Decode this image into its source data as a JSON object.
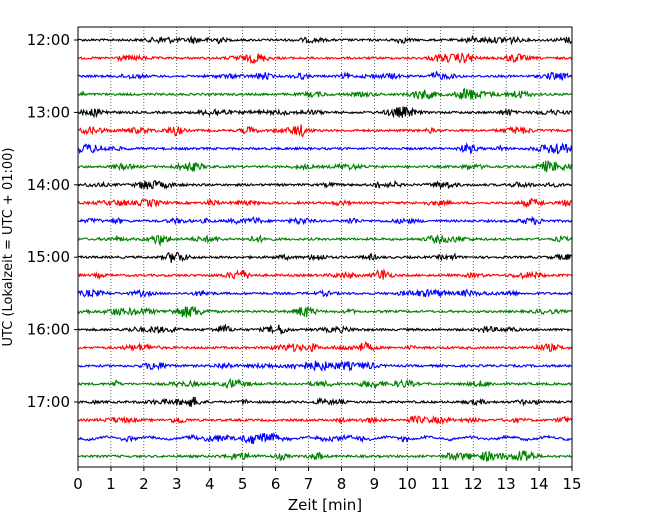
{
  "chart_data": {
    "type": "line",
    "title": "",
    "xlabel": "Zeit  [min]",
    "ylabel": "UTC (Lokalzeit = UTC + 01:00)",
    "xlim": [
      0,
      15
    ],
    "x_ticks": [
      "0",
      "1",
      "2",
      "3",
      "4",
      "5",
      "6",
      "7",
      "8",
      "9",
      "10",
      "11",
      "12",
      "13",
      "14",
      "15"
    ],
    "y_ticks": [
      "12:00",
      "13:00",
      "14:00",
      "15:00",
      "16:00",
      "17:00"
    ],
    "grid": "vertical dotted",
    "trace_interval_minutes": 15,
    "trace_colors": [
      "#000000",
      "#ff0000",
      "#0000ff",
      "#008000"
    ],
    "traces": [
      {
        "start": "12:00",
        "color": "#000000"
      },
      {
        "start": "12:15",
        "color": "#ff0000"
      },
      {
        "start": "12:30",
        "color": "#0000ff"
      },
      {
        "start": "12:45",
        "color": "#008000"
      },
      {
        "start": "13:00",
        "color": "#000000"
      },
      {
        "start": "13:15",
        "color": "#ff0000"
      },
      {
        "start": "13:30",
        "color": "#0000ff"
      },
      {
        "start": "13:45",
        "color": "#008000"
      },
      {
        "start": "14:00",
        "color": "#000000"
      },
      {
        "start": "14:15",
        "color": "#ff0000"
      },
      {
        "start": "14:30",
        "color": "#0000ff"
      },
      {
        "start": "14:45",
        "color": "#008000"
      },
      {
        "start": "15:00",
        "color": "#000000"
      },
      {
        "start": "15:15",
        "color": "#ff0000"
      },
      {
        "start": "15:30",
        "color": "#0000ff"
      },
      {
        "start": "15:45",
        "color": "#008000"
      },
      {
        "start": "16:00",
        "color": "#000000"
      },
      {
        "start": "16:15",
        "color": "#ff0000"
      },
      {
        "start": "16:30",
        "color": "#0000ff"
      },
      {
        "start": "16:45",
        "color": "#008000"
      },
      {
        "start": "17:00",
        "color": "#000000"
      },
      {
        "start": "17:15",
        "color": "#ff0000"
      },
      {
        "start": "17:30",
        "color": "#0000ff"
      },
      {
        "start": "17:45",
        "color": "#008000"
      }
    ]
  }
}
